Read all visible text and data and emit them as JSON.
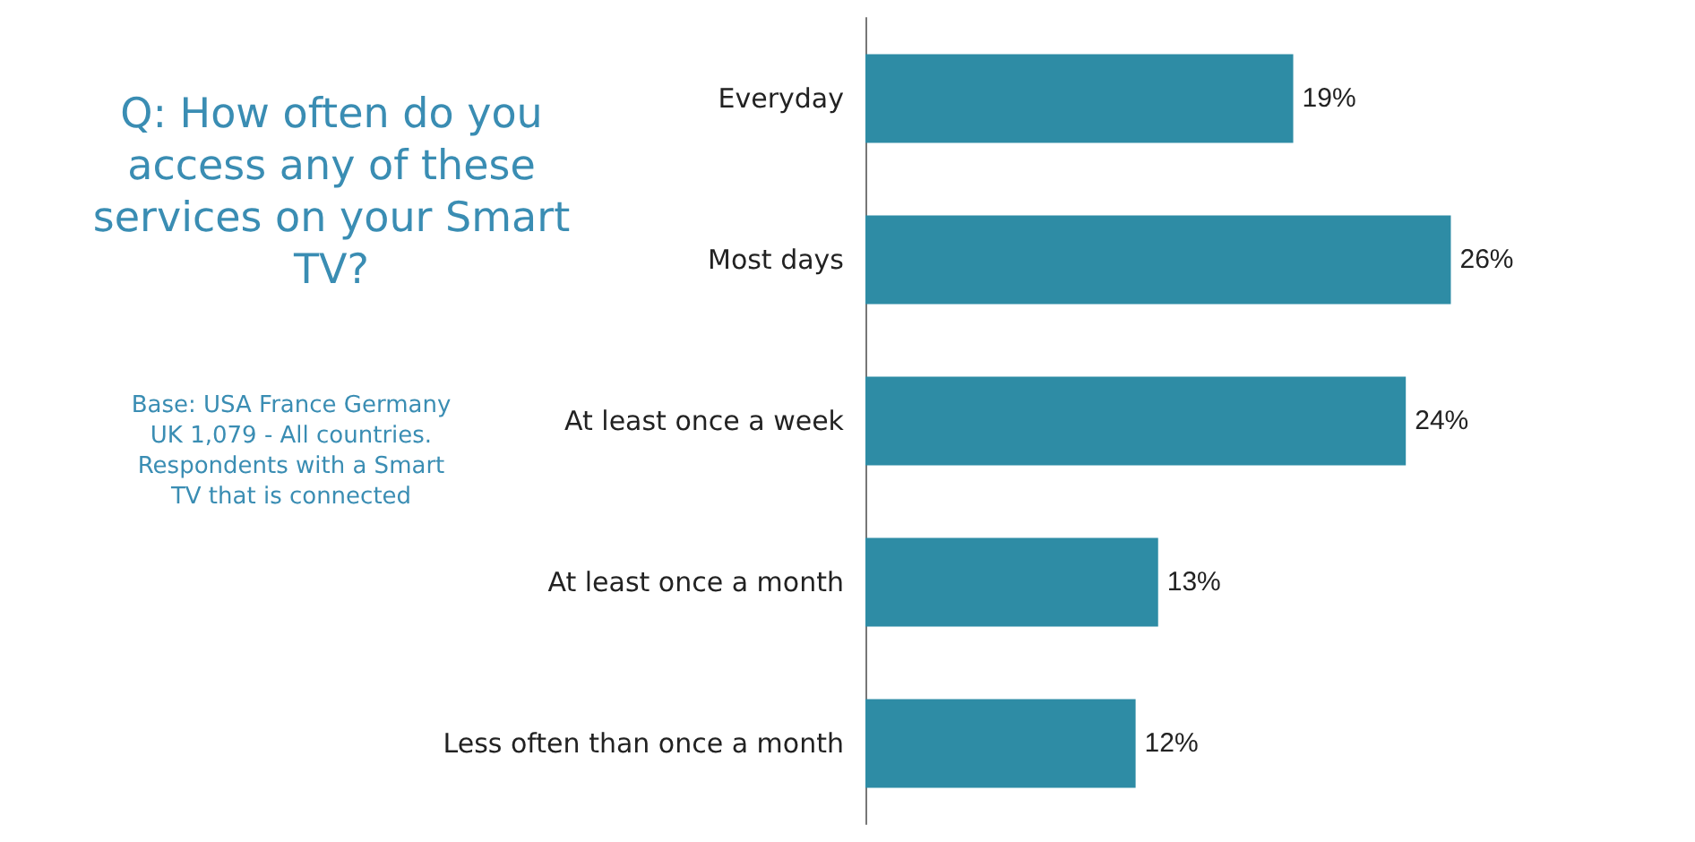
{
  "chart_data": {
    "type": "bar",
    "orientation": "horizontal",
    "title": "Q: How often do you access any of these services on your Smart TV?",
    "annotations": [
      "Base: USA France Germany UK 1,079 - All countries. Respondents with a Smart TV that is connected"
    ],
    "categories": [
      "Everyday",
      "Most days",
      "At least once a week",
      "At least once a month",
      "Less often than once a month"
    ],
    "values": [
      19,
      26,
      24,
      13,
      12
    ],
    "value_labels": [
      "19%",
      "26%",
      "24%",
      "13%",
      "12%"
    ],
    "color": "#2e8ca5"
  }
}
